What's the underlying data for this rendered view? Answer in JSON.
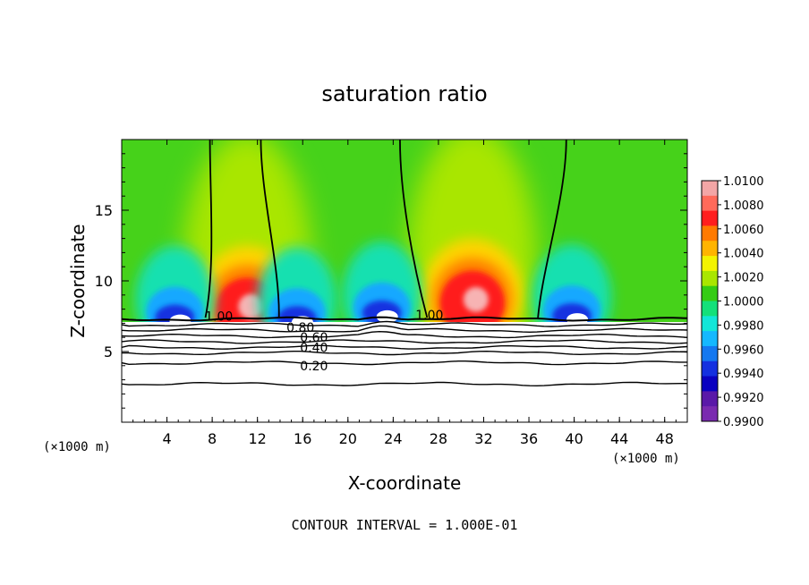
{
  "chart_data": {
    "type": "heatmap",
    "title": "saturation ratio",
    "xlabel": "X-coordinate",
    "ylabel": "Z-coordinate",
    "x_unit_left": "(×1000 m)",
    "x_unit_right": "(×1000 m)",
    "xlim": [
      0,
      50
    ],
    "ylim": [
      0,
      20
    ],
    "x_ticks": [
      4,
      8,
      12,
      16,
      20,
      24,
      28,
      32,
      36,
      40,
      44,
      48
    ],
    "y_ticks": [
      5,
      10,
      15
    ],
    "footer": "CONTOUR INTERVAL = 1.000E-01",
    "colorbar": {
      "labels": [
        "1.0100",
        "1.0080",
        "1.0060",
        "1.0040",
        "1.0020",
        "1.0000",
        "0.9980",
        "0.9960",
        "0.9940",
        "0.9920",
        "0.9900"
      ],
      "colors": [
        "#f3a6a6",
        "#ff6a5a",
        "#ff1e1e",
        "#ff7a00",
        "#ffb400",
        "#f3f300",
        "#a9e600",
        "#34cc14",
        "#14e07a",
        "#12e6d8",
        "#14b8ff",
        "#1478f0",
        "#1430e0",
        "#0a00c0",
        "#5a18a8",
        "#7a2ab0"
      ]
    },
    "contour_labels": [
      {
        "text": "1.00",
        "x": 8.6,
        "y": 7.5
      },
      {
        "text": "1.00",
        "x": 27.2,
        "y": 7.6
      },
      {
        "text": "0.80",
        "x": 15.8,
        "y": 6.7
      },
      {
        "text": "0.60",
        "x": 17.0,
        "y": 6.0
      },
      {
        "text": "0.40",
        "x": 17.0,
        "y": 5.3
      },
      {
        "text": "0.20",
        "x": 17.0,
        "y": 4.0
      }
    ],
    "contour_lines_y": [
      7.3,
      6.9,
      6.5,
      6.1,
      5.7,
      5.3,
      4.9,
      4.2,
      2.7
    ],
    "dry_cores": [
      {
        "x": 4.7,
        "y": 7.3
      },
      {
        "x": 15.5,
        "y": 7.2
      },
      {
        "x": 23.0,
        "y": 7.6
      },
      {
        "x": 39.8,
        "y": 7.4
      }
    ],
    "moist_cores": [
      {
        "x": 11.1,
        "y": 9.7
      },
      {
        "x": 31.0,
        "y": 10.2
      }
    ]
  }
}
